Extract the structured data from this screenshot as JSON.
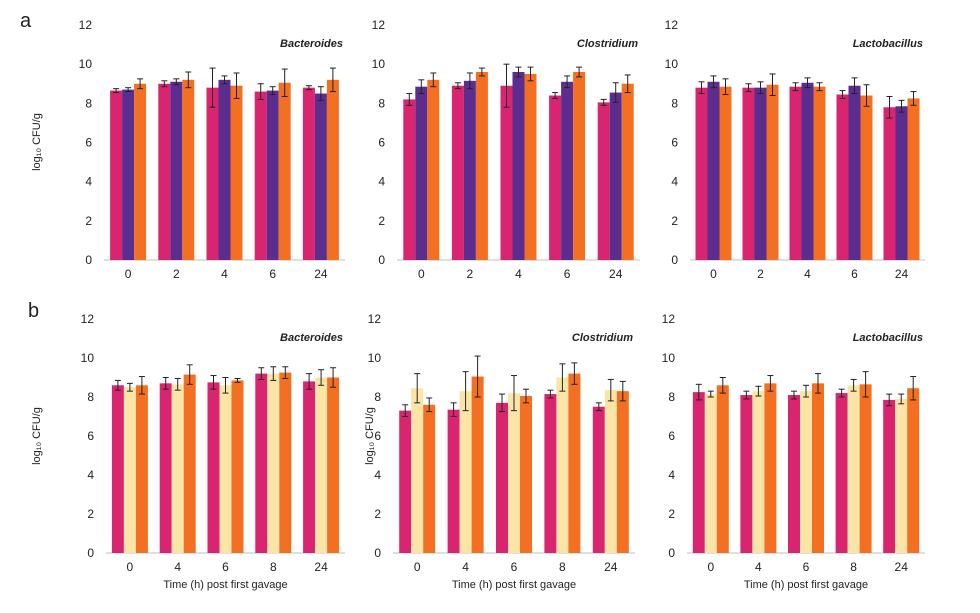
{
  "panels": [
    {
      "letter": "a",
      "xlabel": ""
    },
    {
      "letter": "b",
      "xlabel": "Time (h) post first gavage"
    }
  ],
  "colors": {
    "magenta": "#d9256f",
    "purple": "#5b2d8f",
    "orange": "#f36f21",
    "cream": "#fbe5a6"
  },
  "chart_data": [
    {
      "type": "bar",
      "panel": "a",
      "title": "Bacteroides",
      "xlabel": "",
      "ylabel": "log₁₀ CFU/g",
      "ylim": [
        0,
        12
      ],
      "yticks": [
        0,
        2,
        4,
        6,
        8,
        10,
        12
      ],
      "categories": [
        "0",
        "2",
        "4",
        "6",
        "24"
      ],
      "grid": false,
      "series": [
        {
          "color": "#d9256f",
          "values": [
            8.65,
            9.0,
            8.8,
            8.6,
            8.8
          ],
          "errors": [
            0.1,
            0.15,
            1.0,
            0.4,
            0.1
          ]
        },
        {
          "color": "#5b2d8f",
          "values": [
            8.7,
            9.1,
            9.2,
            8.65,
            8.5
          ],
          "errors": [
            0.1,
            0.15,
            0.2,
            0.2,
            0.35
          ]
        },
        {
          "color": "#f36f21",
          "values": [
            9.0,
            9.2,
            8.9,
            9.05,
            9.2
          ],
          "errors": [
            0.25,
            0.4,
            0.65,
            0.7,
            0.6
          ]
        }
      ]
    },
    {
      "type": "bar",
      "panel": "a",
      "title": "Clostridium",
      "xlabel": "",
      "ylabel": "",
      "ylim": [
        0,
        12
      ],
      "yticks": [
        0,
        2,
        4,
        6,
        8,
        10,
        12
      ],
      "categories": [
        "0",
        "2",
        "4",
        "6",
        "24"
      ],
      "grid": false,
      "series": [
        {
          "color": "#d9256f",
          "values": [
            8.2,
            8.9,
            8.9,
            8.4,
            8.05
          ],
          "errors": [
            0.3,
            0.15,
            1.1,
            0.15,
            0.15
          ]
        },
        {
          "color": "#5b2d8f",
          "values": [
            8.85,
            9.15,
            9.6,
            9.1,
            8.55
          ],
          "errors": [
            0.35,
            0.4,
            0.25,
            0.3,
            0.5
          ]
        },
        {
          "color": "#f36f21",
          "values": [
            9.2,
            9.6,
            9.5,
            9.6,
            9.0
          ],
          "errors": [
            0.35,
            0.2,
            0.35,
            0.25,
            0.45
          ]
        }
      ]
    },
    {
      "type": "bar",
      "panel": "a",
      "title": "Lactobacillus",
      "xlabel": "",
      "ylabel": "",
      "ylim": [
        0,
        12
      ],
      "yticks": [
        0,
        2,
        4,
        6,
        8,
        10,
        12
      ],
      "categories": [
        "0",
        "2",
        "4",
        "6",
        "24"
      ],
      "grid": false,
      "series": [
        {
          "color": "#d9256f",
          "values": [
            8.8,
            8.8,
            8.85,
            8.45,
            7.8
          ],
          "errors": [
            0.3,
            0.2,
            0.2,
            0.2,
            0.55
          ]
        },
        {
          "color": "#5b2d8f",
          "values": [
            9.1,
            8.8,
            9.05,
            8.9,
            7.85
          ],
          "errors": [
            0.3,
            0.3,
            0.25,
            0.4,
            0.3
          ]
        },
        {
          "color": "#f36f21",
          "values": [
            8.85,
            8.95,
            8.85,
            8.4,
            8.25
          ],
          "errors": [
            0.4,
            0.55,
            0.2,
            0.55,
            0.35
          ]
        }
      ]
    },
    {
      "type": "bar",
      "panel": "b",
      "title": "Bacteroides",
      "xlabel": "Time (h) post first gavage",
      "ylabel": "log₁₀ CFU/g",
      "ylim": [
        0,
        12
      ],
      "yticks": [
        0,
        2,
        4,
        6,
        8,
        10,
        12
      ],
      "categories": [
        "0",
        "4",
        "6",
        "8",
        "24"
      ],
      "grid": false,
      "series": [
        {
          "color": "#d9256f",
          "values": [
            8.6,
            8.7,
            8.75,
            9.2,
            8.8
          ],
          "errors": [
            0.25,
            0.3,
            0.35,
            0.3,
            0.4
          ]
        },
        {
          "color": "#fbe5a6",
          "values": [
            8.5,
            8.65,
            8.6,
            9.2,
            9.0
          ],
          "errors": [
            0.2,
            0.3,
            0.4,
            0.35,
            0.4
          ]
        },
        {
          "color": "#f36f21",
          "values": [
            8.6,
            9.15,
            8.85,
            9.25,
            9.0
          ],
          "errors": [
            0.45,
            0.5,
            0.1,
            0.3,
            0.5
          ]
        }
      ]
    },
    {
      "type": "bar",
      "panel": "b",
      "title": "Clostridium",
      "xlabel": "Time (h) post first gavage",
      "ylabel": "log₁₀ CFU/g",
      "ylim": [
        0,
        12
      ],
      "yticks": [
        0,
        2,
        4,
        6,
        8,
        10,
        12
      ],
      "categories": [
        "0",
        "4",
        "6",
        "8",
        "24"
      ],
      "grid": false,
      "series": [
        {
          "color": "#d9256f",
          "values": [
            7.3,
            7.35,
            7.7,
            8.15,
            7.5
          ],
          "errors": [
            0.3,
            0.35,
            0.45,
            0.2,
            0.2
          ]
        },
        {
          "color": "#fbe5a6",
          "values": [
            8.45,
            8.3,
            8.2,
            9.0,
            8.35
          ],
          "errors": [
            0.75,
            1.0,
            0.9,
            0.7,
            0.55
          ]
        },
        {
          "color": "#f36f21",
          "values": [
            7.6,
            9.05,
            8.05,
            9.2,
            8.3
          ],
          "errors": [
            0.35,
            1.05,
            0.35,
            0.55,
            0.5
          ]
        }
      ]
    },
    {
      "type": "bar",
      "panel": "b",
      "title": "Lactobacillus",
      "xlabel": "Time (h) post first gavage",
      "ylabel": "",
      "ylim": [
        0,
        12
      ],
      "yticks": [
        0,
        2,
        4,
        6,
        8,
        10,
        12
      ],
      "categories": [
        "0",
        "4",
        "6",
        "8",
        "24"
      ],
      "grid": false,
      "series": [
        {
          "color": "#d9256f",
          "values": [
            8.25,
            8.1,
            8.1,
            8.2,
            7.85
          ],
          "errors": [
            0.4,
            0.2,
            0.2,
            0.2,
            0.3
          ]
        },
        {
          "color": "#fbe5a6",
          "values": [
            8.15,
            8.3,
            8.3,
            8.6,
            7.9
          ],
          "errors": [
            0.15,
            0.25,
            0.3,
            0.3,
            0.25
          ]
        },
        {
          "color": "#f36f21",
          "values": [
            8.6,
            8.7,
            8.7,
            8.65,
            8.45
          ],
          "errors": [
            0.4,
            0.4,
            0.5,
            0.65,
            0.6
          ]
        }
      ]
    }
  ]
}
